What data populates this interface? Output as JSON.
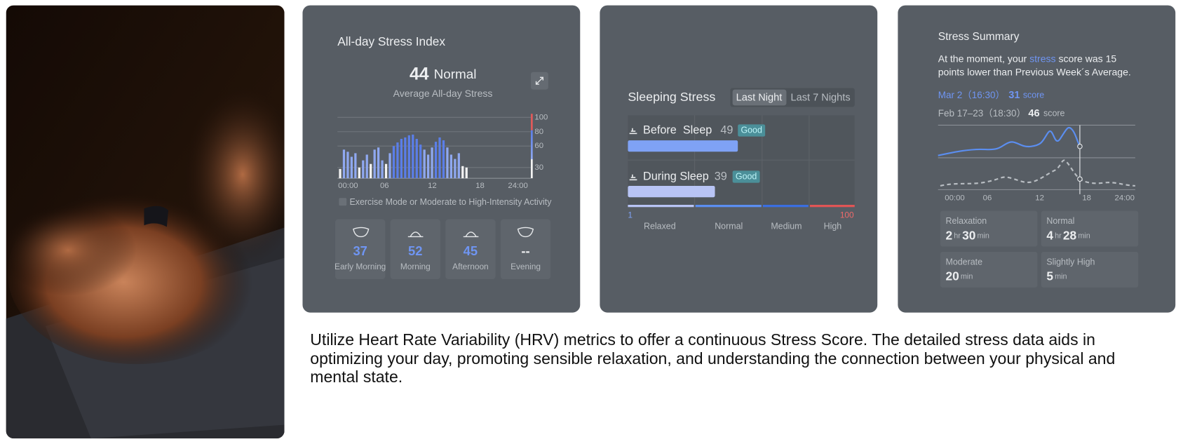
{
  "stress_index": {
    "title": "All-day Stress Index",
    "score": 44,
    "level": "Normal",
    "subtitle": "Average All-day Stress",
    "chart": {
      "type": "bar",
      "values": [
        28,
        55,
        52,
        45,
        50,
        30,
        40,
        48,
        35,
        55,
        58,
        40,
        35,
        50,
        60,
        65,
        70,
        72,
        75,
        76,
        70,
        62,
        55,
        48,
        58,
        66,
        72,
        68,
        58,
        48,
        42,
        50,
        32,
        30
      ],
      "colors": [
        "#f2f2f2",
        "#8fa8f0",
        "#8fa8f0",
        "#8fa8f0",
        "#8fa8f0",
        "#f2f2f2",
        "#8fa8f0",
        "#8fa8f0",
        "#f2f2f2",
        "#8fa8f0",
        "#8fa8f0",
        "#8fa8f0",
        "#f2f2f2",
        "#8fa8f0",
        "#5b7ee8",
        "#5b7ee8",
        "#5b7ee8",
        "#5b7ee8",
        "#5b7ee8",
        "#5b7ee8",
        "#5b7ee8",
        "#5b7ee8",
        "#8fa8f0",
        "#8fa8f0",
        "#8fa8f0",
        "#5b7ee8",
        "#5b7ee8",
        "#5b7ee8",
        "#8fa8f0",
        "#8fa8f0",
        "#8fa8f0",
        "#8fa8f0",
        "#f2f2f2",
        "#f2f2f2"
      ],
      "ylim": [
        15,
        105
      ],
      "yticks": [
        30,
        60,
        80,
        100
      ],
      "x_labels": [
        "00:00",
        "06",
        "12",
        "18",
        "24:00"
      ],
      "grid": true
    },
    "checkbox": "Exercise Mode or Moderate to High-Intensity Activity",
    "periods": [
      {
        "value": 37,
        "label": "Early Morning"
      },
      {
        "value": 52,
        "label": "Morning"
      },
      {
        "value": 45,
        "label": "Afternoon"
      },
      {
        "value": "--",
        "label": "Evening"
      }
    ]
  },
  "sleeping_stress": {
    "title": "Sleeping Stress",
    "tabs": [
      "Last Night",
      "Last 7 Nights"
    ],
    "items": [
      {
        "label": "Before  Sleep",
        "value": 49,
        "badge": "Good"
      },
      {
        "label": "During Sleep",
        "value": 39,
        "badge": "Good"
      }
    ],
    "scale_min": 1,
    "scale_max": 100,
    "levels": [
      "Relaxed",
      "Normal",
      "Medium",
      "High"
    ]
  },
  "summary": {
    "title": "Stress Summary",
    "line1": [
      "At the moment, your ",
      "stress",
      " score was 15"
    ],
    "line2": "points lower than Previous Week´s Average.",
    "current": {
      "date": "Mar 2（16:30）",
      "score": 31,
      "unit": "score"
    },
    "previous": {
      "date": "Feb 17–23（18:30）",
      "score": 46,
      "unit": "score"
    },
    "x_labels": [
      "00:00",
      "06",
      "12",
      "18",
      "24:00"
    ],
    "stats": [
      {
        "label": "Relaxation",
        "hours": 2,
        "h_unit": "hr",
        "minutes": 30,
        "m_unit": "min"
      },
      {
        "label": "Normal",
        "hours": 4,
        "h_unit": "hr",
        "minutes": 28,
        "m_unit": "min"
      },
      {
        "label": "Moderate",
        "minutes": 20,
        "m_unit": "min"
      },
      {
        "label": "Slightly High",
        "minutes": 5,
        "m_unit": "min"
      }
    ]
  },
  "description": "Utilize Heart Rate Variability (HRV) metrics to offer a continuous Stress Score. The detailed stress data aids in optimizing your day, promoting sensible relaxation, and understanding the connection between your physical and mental state."
}
